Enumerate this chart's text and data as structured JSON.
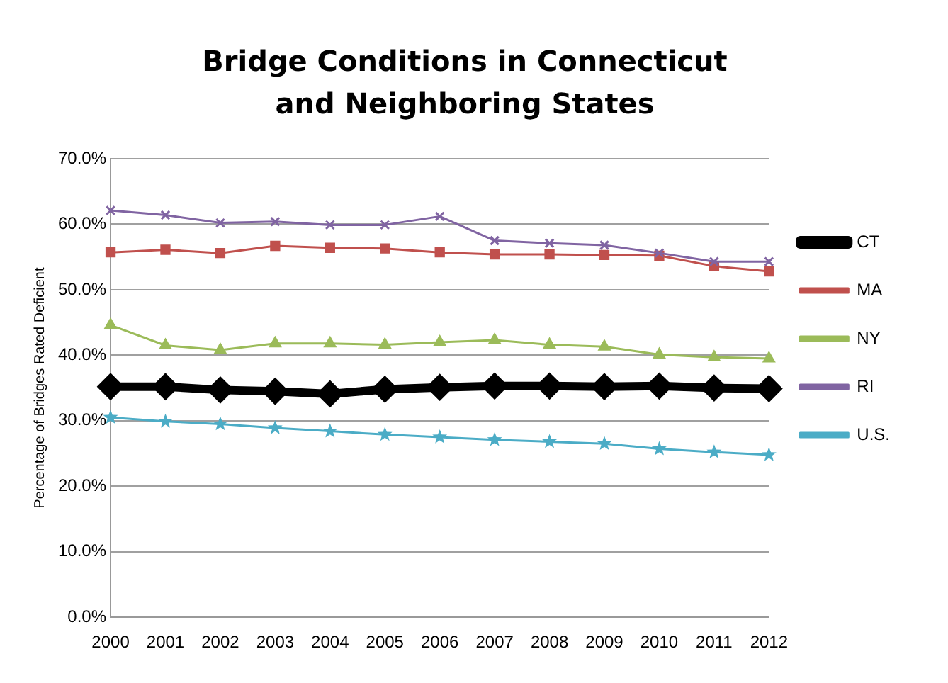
{
  "chart_data": {
    "type": "line",
    "title": "Bridge Conditions in Connecticut and Neighboring States",
    "ylabel": "Percentage of Bridges Rated Deficient",
    "categories": [
      "2000",
      "2001",
      "2002",
      "2003",
      "2004",
      "2005",
      "2006",
      "2007",
      "2008",
      "2009",
      "2010",
      "2011",
      "2012"
    ],
    "series": [
      {
        "name": "CT",
        "color": "#000000",
        "marker": "diamond",
        "values": [
          35.2,
          35.2,
          34.7,
          34.5,
          34.1,
          34.8,
          35.1,
          35.3,
          35.3,
          35.2,
          35.3,
          35.0,
          34.9
        ]
      },
      {
        "name": "MA",
        "color": "#c0504d",
        "marker": "square",
        "values": [
          55.7,
          56.1,
          55.6,
          56.7,
          56.4,
          56.3,
          55.7,
          55.4,
          55.4,
          55.3,
          55.2,
          53.6,
          52.8
        ]
      },
      {
        "name": "NY",
        "color": "#9bbb59",
        "marker": "triangle",
        "values": [
          44.6,
          41.5,
          40.8,
          41.8,
          41.8,
          41.6,
          42.0,
          42.3,
          41.6,
          41.3,
          40.1,
          39.7,
          39.5
        ]
      },
      {
        "name": "RI",
        "color": "#8064a2",
        "marker": "cross",
        "values": [
          62.1,
          61.4,
          60.2,
          60.4,
          59.9,
          59.9,
          61.2,
          57.5,
          57.1,
          56.8,
          55.6,
          54.3,
          54.3
        ]
      },
      {
        "name": "U.S.",
        "color": "#4bacc6",
        "marker": "star",
        "values": [
          30.5,
          29.9,
          29.5,
          28.9,
          28.4,
          27.9,
          27.5,
          27.1,
          26.8,
          26.5,
          25.7,
          25.2,
          24.8
        ]
      }
    ],
    "ylim": [
      0,
      70
    ],
    "yticks": [
      {
        "value": 0,
        "label": "0.0%"
      },
      {
        "value": 10,
        "label": "10.0%"
      },
      {
        "value": 20,
        "label": "20.0%"
      },
      {
        "value": 30,
        "label": "30.0%"
      },
      {
        "value": 40,
        "label": "40.0%"
      },
      {
        "value": 50,
        "label": "50.0%"
      },
      {
        "value": 60,
        "label": "60.0%"
      },
      {
        "value": 70,
        "label": "70.0%"
      }
    ],
    "grid": "y",
    "legend": "right",
    "line_style": "solid"
  }
}
